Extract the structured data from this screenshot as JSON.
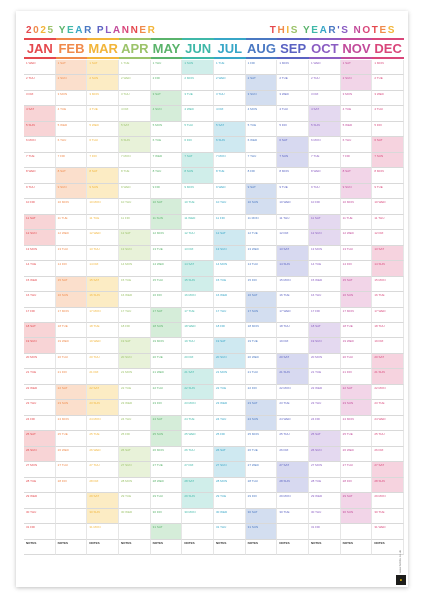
{
  "title_left": "2025 YEAR PLANNER",
  "title_right": "THIS YEAR'S NOTES",
  "title_palette": [
    "#e5484d",
    "#f08a4b",
    "#f2b53a",
    "#9cc36a",
    "#5ab36b",
    "#3fb8a8",
    "#37a6c7",
    "#4a78c2",
    "#5a62c2",
    "#8a5cc2",
    "#c24a9a",
    "#d9467a"
  ],
  "months": [
    {
      "name": "JAN",
      "color": "#e5484d",
      "tint": "#f8d4d6"
    },
    {
      "name": "FEB",
      "color": "#f08a4b",
      "tint": "#fbdfcc"
    },
    {
      "name": "MAR",
      "color": "#f2b53a",
      "tint": "#fcecc4"
    },
    {
      "name": "APR",
      "color": "#9cc36a",
      "tint": "#e8f2d9"
    },
    {
      "name": "MAY",
      "color": "#5ab36b",
      "tint": "#d5edd9"
    },
    {
      "name": "JUN",
      "color": "#3fb8a8",
      "tint": "#d0eeea"
    },
    {
      "name": "JUL",
      "color": "#37a6c7",
      "tint": "#cfe9f1"
    },
    {
      "name": "AUG",
      "color": "#4a78c2",
      "tint": "#d3def0"
    },
    {
      "name": "SEP",
      "color": "#5a62c2",
      "tint": "#d7d9f0"
    },
    {
      "name": "OCT",
      "color": "#8a5cc2",
      "tint": "#e4d9f0"
    },
    {
      "name": "NOV",
      "color": "#c24a9a",
      "tint": "#f2d5e8"
    },
    {
      "name": "DEC",
      "color": "#d9467a",
      "tint": "#f6d3df"
    }
  ],
  "year": 2025,
  "notes_label": "NOTES",
  "brand": "www.bobilu.co.uk",
  "logo": "BOBILU"
}
